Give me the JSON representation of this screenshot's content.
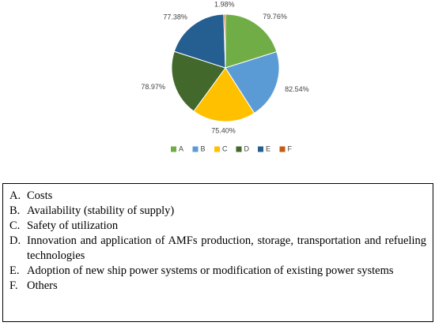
{
  "chart_data": {
    "type": "pie",
    "categories": [
      "A",
      "B",
      "C",
      "D",
      "E",
      "F"
    ],
    "values": [
      79.76,
      82.54,
      75.4,
      78.97,
      77.38,
      1.98
    ],
    "value_labels": [
      "79.76%",
      "82.54%",
      "75.40%",
      "78.97%",
      "77.38%",
      "1.98%"
    ],
    "colors": [
      "#70ad47",
      "#5b9bd5",
      "#ffc000",
      "#43682b",
      "#255e91",
      "#c55a11"
    ],
    "legend": "bottom"
  },
  "key": {
    "items": [
      {
        "letter": "A.",
        "text": "Costs"
      },
      {
        "letter": "B.",
        "text": "Availability (stability of supply)"
      },
      {
        "letter": "C.",
        "text": "Safety of utilization"
      },
      {
        "letter": "D.",
        "text": "Innovation and application of AMFs production, storage, transportation and refueling technologies"
      },
      {
        "letter": "E.",
        "text": "Adoption of new ship power systems or modification of existing power systems"
      },
      {
        "letter": "F.",
        "text": "Others"
      }
    ]
  }
}
